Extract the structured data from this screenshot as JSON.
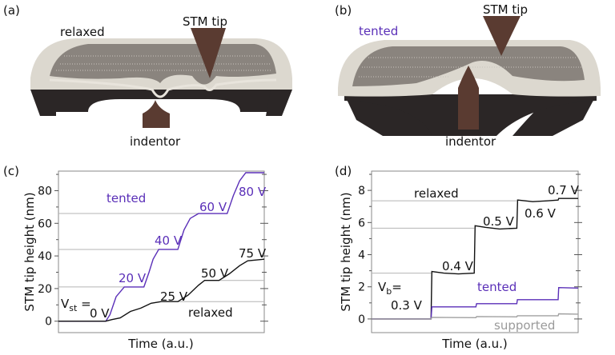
{
  "panels": {
    "a": {
      "label": "(a)",
      "state": "relaxed",
      "tip": "STM tip",
      "indentor": "indentor"
    },
    "b": {
      "label": "(b)",
      "state": "tented",
      "tip": "STM tip",
      "indentor": "indentor"
    },
    "c": {
      "label": "(c)"
    },
    "d": {
      "label": "(d)"
    }
  },
  "colors": {
    "tented": "#5a2fb8",
    "relaxed": "#111111",
    "supported": "#a0a0a0",
    "guide": "#b4b4b4",
    "tip": "#5a3b31",
    "plate": "#dcd8cf",
    "base": "#2b2626"
  },
  "chart_data": [
    {
      "type": "line",
      "title": "",
      "xlabel": "Time (a.u.)",
      "ylabel": "STM tip height (nm)",
      "xlim": [
        0,
        100
      ],
      "ylim": [
        -7,
        92
      ],
      "yticks": [
        0,
        20,
        40,
        60,
        80
      ],
      "series": [
        {
          "name": "tented",
          "color": "#5a2fb8",
          "x": [
            0,
            23,
            25,
            28,
            32,
            41.5,
            44,
            46,
            48.7,
            58,
            61,
            64,
            68,
            82,
            85,
            88,
            91,
            100
          ],
          "y": [
            0,
            0,
            4,
            15,
            21,
            21,
            30,
            38,
            44,
            44,
            56,
            63,
            66,
            66,
            77,
            86,
            91,
            91
          ]
        },
        {
          "name": "relaxed",
          "color": "#111111",
          "x": [
            0,
            23,
            26,
            30,
            35,
            40,
            45,
            50,
            58,
            63,
            68,
            71,
            78,
            83,
            88,
            92,
            100
          ],
          "y": [
            0,
            0,
            1,
            2,
            6,
            8,
            11,
            12,
            12,
            16,
            22,
            25,
            25,
            29,
            34,
            37,
            38
          ]
        }
      ],
      "guides": [
        {
          "y": 21,
          "to": 32
        },
        {
          "y": 44,
          "to": 48.7
        },
        {
          "y": 66,
          "to": 68
        },
        {
          "y": 12,
          "from": 58
        },
        {
          "y": 25,
          "from": 71
        }
      ],
      "annotations": [
        "tented",
        "20 V",
        "40 V",
        "60 V",
        "80 V",
        "75 V",
        "50 V",
        "25 V",
        "relaxed",
        "0 V"
      ],
      "vlabel": {
        "main": "V",
        "sub": "st",
        "eq": " ="
      }
    },
    {
      "type": "line",
      "title": "",
      "xlabel": "Time (a.u.)",
      "ylabel": "STM tip height (nm)",
      "xlim": [
        0,
        100
      ],
      "ylim": [
        -0.85,
        9.2
      ],
      "yticks": [
        0,
        2,
        4,
        6,
        8
      ],
      "series": [
        {
          "name": "relaxed",
          "color": "#111111",
          "x": [
            0,
            28.8,
            29.2,
            35,
            42,
            49.7,
            50.1,
            55,
            62,
            70.3,
            70.7,
            78,
            85,
            90.3,
            90.6,
            100
          ],
          "y": [
            0,
            0,
            2.95,
            2.85,
            2.8,
            2.85,
            5.8,
            5.7,
            5.6,
            5.65,
            7.4,
            7.3,
            7.35,
            7.4,
            7.5,
            7.5
          ]
        },
        {
          "name": "tented",
          "color": "#5a2fb8",
          "x": [
            0,
            28.8,
            29.2,
            50.5,
            50.8,
            70.3,
            70.6,
            90.3,
            90.6,
            100
          ],
          "y": [
            0,
            0,
            0.75,
            0.75,
            0.95,
            0.95,
            1.2,
            1.2,
            1.95,
            1.92
          ]
        },
        {
          "name": "supported",
          "color": "#a0a0a0",
          "x": [
            0,
            28.8,
            29.2,
            50.5,
            50.8,
            70.3,
            70.6,
            90.3,
            90.6,
            100
          ],
          "y": [
            0,
            0,
            0.1,
            0.08,
            0.15,
            0.13,
            0.2,
            0.2,
            0.32,
            0.3
          ]
        }
      ],
      "guides": [
        {
          "y": 2.85,
          "to": 28.8
        },
        {
          "y": 5.65,
          "to": 49.7
        },
        {
          "y": 7.35,
          "to": 70.3
        }
      ],
      "annotations": [
        "relaxed",
        "0.7 V",
        "0.6 V",
        "0.5 V",
        "0.4 V",
        "0.3 V",
        "tented",
        "supported"
      ],
      "vlabel": {
        "main": "V",
        "sub": "b",
        "eq": "="
      }
    }
  ]
}
